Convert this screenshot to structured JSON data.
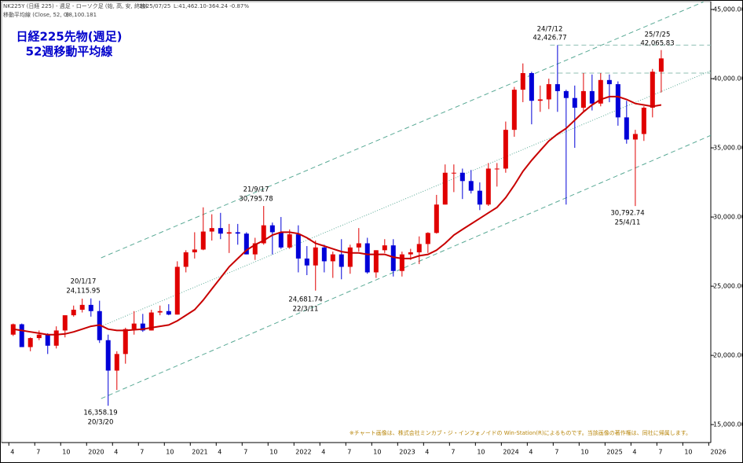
{
  "chart_data": {
    "type": "candlestick",
    "header": {
      "instrument": "NK225Y (日経 225) - 週足 - ローソク足 (始, 高, 安, 終値)",
      "date": "2025/07/25",
      "last_label": "L:41,462.10",
      "change": "-364.24 -0.87%"
    },
    "title": "日経225先物(週足)",
    "subtitle": "52週移動平均線",
    "note": "※チャート画像は、株式会社ミンカブ・ジ・インフォノイドの Win-Station(R)によるものです。当該画像の著作権は、同社に帰属します。",
    "up_color": "#e00000",
    "down_color": "#0000d8",
    "x": [
      2019.292,
      2019.375,
      2019.458,
      2019.542,
      2019.625,
      2019.708,
      2019.792,
      2019.875,
      2019.958,
      2020.042,
      2020.125,
      2020.208,
      2020.292,
      2020.375,
      2020.458,
      2020.542,
      2020.625,
      2020.708,
      2020.792,
      2020.875,
      2020.958,
      2021.042,
      2021.125,
      2021.208,
      2021.292,
      2021.375,
      2021.458,
      2021.542,
      2021.625,
      2021.708,
      2021.792,
      2021.875,
      2021.958,
      2022.042,
      2022.125,
      2022.208,
      2022.292,
      2022.375,
      2022.458,
      2022.542,
      2022.625,
      2022.708,
      2022.792,
      2022.875,
      2022.958,
      2023.042,
      2023.125,
      2023.208,
      2023.292,
      2023.375,
      2023.458,
      2023.542,
      2023.625,
      2023.708,
      2023.792,
      2023.875,
      2023.958,
      2024.042,
      2024.125,
      2024.208,
      2024.292,
      2024.375,
      2024.458,
      2024.542,
      2024.625,
      2024.708,
      2024.792,
      2024.875,
      2024.958,
      2025.042,
      2025.125,
      2025.208,
      2025.292,
      2025.375,
      2025.458,
      2025.542
    ],
    "open": [
      21500,
      22250,
      20600,
      21250,
      21500,
      20700,
      21800,
      22900,
      23300,
      23650,
      23200,
      21100,
      18900,
      20100,
      21900,
      22300,
      21800,
      23100,
      23200,
      22950,
      26400,
      27450,
      27650,
      28950,
      29200,
      28800,
      28900,
      28800,
      27300,
      28100,
      29400,
      28900,
      27800,
      28750,
      27000,
      26500,
      27800,
      26800,
      27300,
      26400,
      27800,
      28100,
      26000,
      27600,
      27950,
      26100,
      27300,
      27450,
      28050,
      28850,
      30900,
      33200,
      33200,
      32600,
      31900,
      30900,
      33500,
      33500,
      36300,
      39200,
      40400,
      38400,
      38500,
      39600,
      39100,
      38600,
      37900,
      39100,
      38200,
      39900,
      39600,
      37200,
      35600,
      36000,
      37900,
      40500
    ],
    "high": [
      22300,
      22300,
      21300,
      21800,
      21600,
      22100,
      22900,
      23600,
      24100,
      24115.95,
      23950,
      21500,
      20300,
      22000,
      23200,
      23000,
      23300,
      23600,
      23700,
      26800,
      27600,
      28900,
      30700,
      30200,
      30300,
      29500,
      29500,
      28900,
      28500,
      30795.78,
      29600,
      30000,
      29100,
      29400,
      27900,
      28300,
      28000,
      27500,
      28400,
      28000,
      29200,
      28500,
      27600,
      28400,
      28400,
      27500,
      27700,
      28600,
      28900,
      31600,
      33800,
      33800,
      33500,
      33400,
      32500,
      33900,
      33900,
      36900,
      39400,
      41100,
      40500,
      39500,
      40000,
      42426.77,
      39200,
      39500,
      40400,
      40300,
      40400,
      40300,
      39800,
      38400,
      36300,
      38000,
      40700,
      42065.83
    ],
    "low": [
      21400,
      20700,
      20300,
      21100,
      20100,
      20500,
      21300,
      22800,
      23100,
      22800,
      20900,
      16358.19,
      17500,
      19400,
      21500,
      21700,
      21800,
      22900,
      22900,
      22950,
      26000,
      27000,
      27600,
      28300,
      28400,
      27400,
      28000,
      27300,
      26900,
      28000,
      27300,
      27700,
      27700,
      26000,
      25800,
      24681.74,
      26000,
      25600,
      25500,
      25900,
      27500,
      25900,
      25600,
      27400,
      25700,
      25700,
      26900,
      26600,
      27400,
      28800,
      30900,
      31800,
      31300,
      31700,
      30500,
      30800,
      32200,
      33200,
      35800,
      38300,
      36700,
      37600,
      37800,
      37600,
      30900,
      35000,
      37600,
      37700,
      38000,
      38300,
      36600,
      35300,
      30792.74,
      35500,
      37200,
      39000
    ],
    "close": [
      22250,
      20600,
      21250,
      21500,
      20700,
      21800,
      22900,
      23300,
      23650,
      23200,
      21100,
      18900,
      20100,
      21900,
      22300,
      21800,
      23100,
      23200,
      22950,
      26400,
      27450,
      27650,
      28950,
      29200,
      28800,
      28900,
      28800,
      27300,
      28100,
      29400,
      28900,
      27800,
      28750,
      27000,
      26500,
      27800,
      26800,
      27300,
      26400,
      27800,
      28100,
      26000,
      27600,
      27950,
      26100,
      27300,
      27450,
      28050,
      28850,
      30900,
      33200,
      33200,
      32600,
      31900,
      30900,
      33500,
      33500,
      36300,
      39200,
      40400,
      38400,
      38500,
      39600,
      39100,
      38600,
      37900,
      39100,
      38200,
      39900,
      39600,
      37200,
      35600,
      36000,
      37900,
      40500,
      41462.1
    ],
    "moving_average": {
      "name": "移動平均線 (Close, 52, 0)",
      "last_label": "38,100.181",
      "color": "#c80000",
      "values": [
        21900,
        21800,
        21700,
        21600,
        21500,
        21500,
        21550,
        21700,
        21900,
        22100,
        22200,
        21900,
        21800,
        21800,
        21850,
        21900,
        22000,
        22100,
        22200,
        22500,
        22900,
        23300,
        24000,
        24800,
        25600,
        26400,
        27000,
        27600,
        28000,
        28300,
        28700,
        28900,
        28900,
        28800,
        28500,
        28100,
        27900,
        27700,
        27500,
        27400,
        27400,
        27300,
        27300,
        27300,
        27100,
        27000,
        27000,
        27200,
        27300,
        27600,
        28100,
        28700,
        29100,
        29500,
        29900,
        30300,
        30700,
        31400,
        32300,
        33300,
        34100,
        34800,
        35500,
        36000,
        36400,
        37000,
        37600,
        38100,
        38500,
        38700,
        38700,
        38500,
        38200,
        38100,
        38000,
        38100.181
      ]
    },
    "trend_lines": [
      {
        "style": "dashed",
        "color": "#5aaa96",
        "points": [
          [
            2020.14,
            27050
          ],
          [
            2025.95,
            45550
          ]
        ]
      },
      {
        "style": "dotted",
        "color": "#5aaa96",
        "points": [
          [
            2020.14,
            22100
          ],
          [
            2026.02,
            40570
          ]
        ]
      },
      {
        "style": "dashed",
        "color": "#5aaa96",
        "points": [
          [
            2020.14,
            16880
          ],
          [
            2026.02,
            35900
          ]
        ]
      },
      {
        "style": "dashed",
        "color": "#8fbfb2",
        "points": [
          [
            2024.47,
            42426.77
          ],
          [
            2026.02,
            42426.77
          ]
        ]
      },
      {
        "style": "dashed",
        "color": "#8fbfb2",
        "points": [
          [
            2024.47,
            40400
          ],
          [
            2026.02,
            40400
          ]
        ]
      }
    ],
    "annotations": [
      {
        "date": "24/7/12",
        "label": "42,426.77"
      },
      {
        "date": "25/7/25",
        "label": "42,065.83"
      },
      {
        "date": "21/9/17",
        "label": "30,795.78"
      },
      {
        "date": "20/1/17",
        "label": "24,115.95"
      },
      {
        "label": "24,681.74",
        "date": "22/3/11"
      },
      {
        "label": "16,358.19",
        "date": "20/3/20"
      },
      {
        "label": "30,792.74",
        "date": "25/4/11"
      }
    ],
    "xlim": [
      2019.18,
      2026.02
    ],
    "ylim": [
      13700,
      45570
    ],
    "xticks": [
      {
        "value": 2019.25,
        "label": "4"
      },
      {
        "value": 2019.5,
        "label": "7"
      },
      {
        "value": 2019.75,
        "label": "10"
      },
      2020,
      {
        "value": 2020.25,
        "label": "4"
      },
      {
        "value": 2020.5,
        "label": "7"
      },
      {
        "value": 2020.75,
        "label": "10"
      },
      2021,
      {
        "value": 2021.25,
        "label": "4"
      },
      {
        "value": 2021.5,
        "label": "7"
      },
      {
        "value": 2021.75,
        "label": "10"
      },
      2022,
      {
        "value": 2022.25,
        "label": "4"
      },
      {
        "value": 2022.5,
        "label": "7"
      },
      {
        "value": 2022.75,
        "label": "10"
      },
      2023,
      {
        "value": 2023.25,
        "label": "4"
      },
      {
        "value": 2023.5,
        "label": "7"
      },
      {
        "value": 2023.75,
        "label": "10"
      },
      2024,
      {
        "value": 2024.25,
        "label": "4"
      },
      {
        "value": 2024.5,
        "label": "7"
      },
      {
        "value": 2024.75,
        "label": "10"
      },
      2025,
      {
        "value": 2025.25,
        "label": "4"
      },
      {
        "value": 2025.5,
        "label": "7"
      },
      {
        "value": 2025.75,
        "label": "10"
      },
      2026
    ],
    "yticks": [
      {
        "value": 15000,
        "label": "15,000.00"
      },
      {
        "value": 20000,
        "label": "20,000.00"
      },
      {
        "value": 25000,
        "label": "25,000.00"
      },
      {
        "value": 30000,
        "label": "30,000.00"
      },
      {
        "value": 35000,
        "label": "35,000.00"
      },
      {
        "value": 40000,
        "label": "40,000.00"
      },
      {
        "value": 45000,
        "label": "45,000.00"
      }
    ]
  }
}
